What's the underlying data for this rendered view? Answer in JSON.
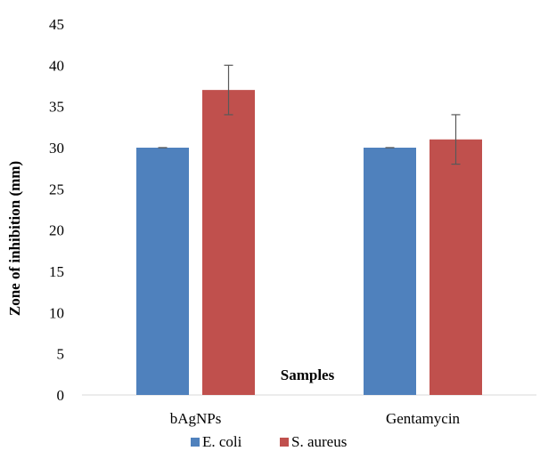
{
  "chart_data": {
    "type": "bar",
    "title": "",
    "xlabel": "Samples",
    "ylabel": "Zone of inhibition (mm)",
    "ylim": [
      0,
      45
    ],
    "yticks": [
      0,
      5,
      10,
      15,
      20,
      25,
      30,
      35,
      40,
      45
    ],
    "grid": false,
    "legend_position": "bottom",
    "categories": [
      "bAgNPs",
      "Gentamycin"
    ],
    "series": [
      {
        "name": "E. coli",
        "color": "#4F81BD",
        "values": [
          30,
          30
        ],
        "errors": [
          0,
          0
        ]
      },
      {
        "name": "S. aureus",
        "color": "#C0504D",
        "values": [
          37,
          31
        ],
        "errors": [
          3,
          3
        ]
      }
    ]
  }
}
